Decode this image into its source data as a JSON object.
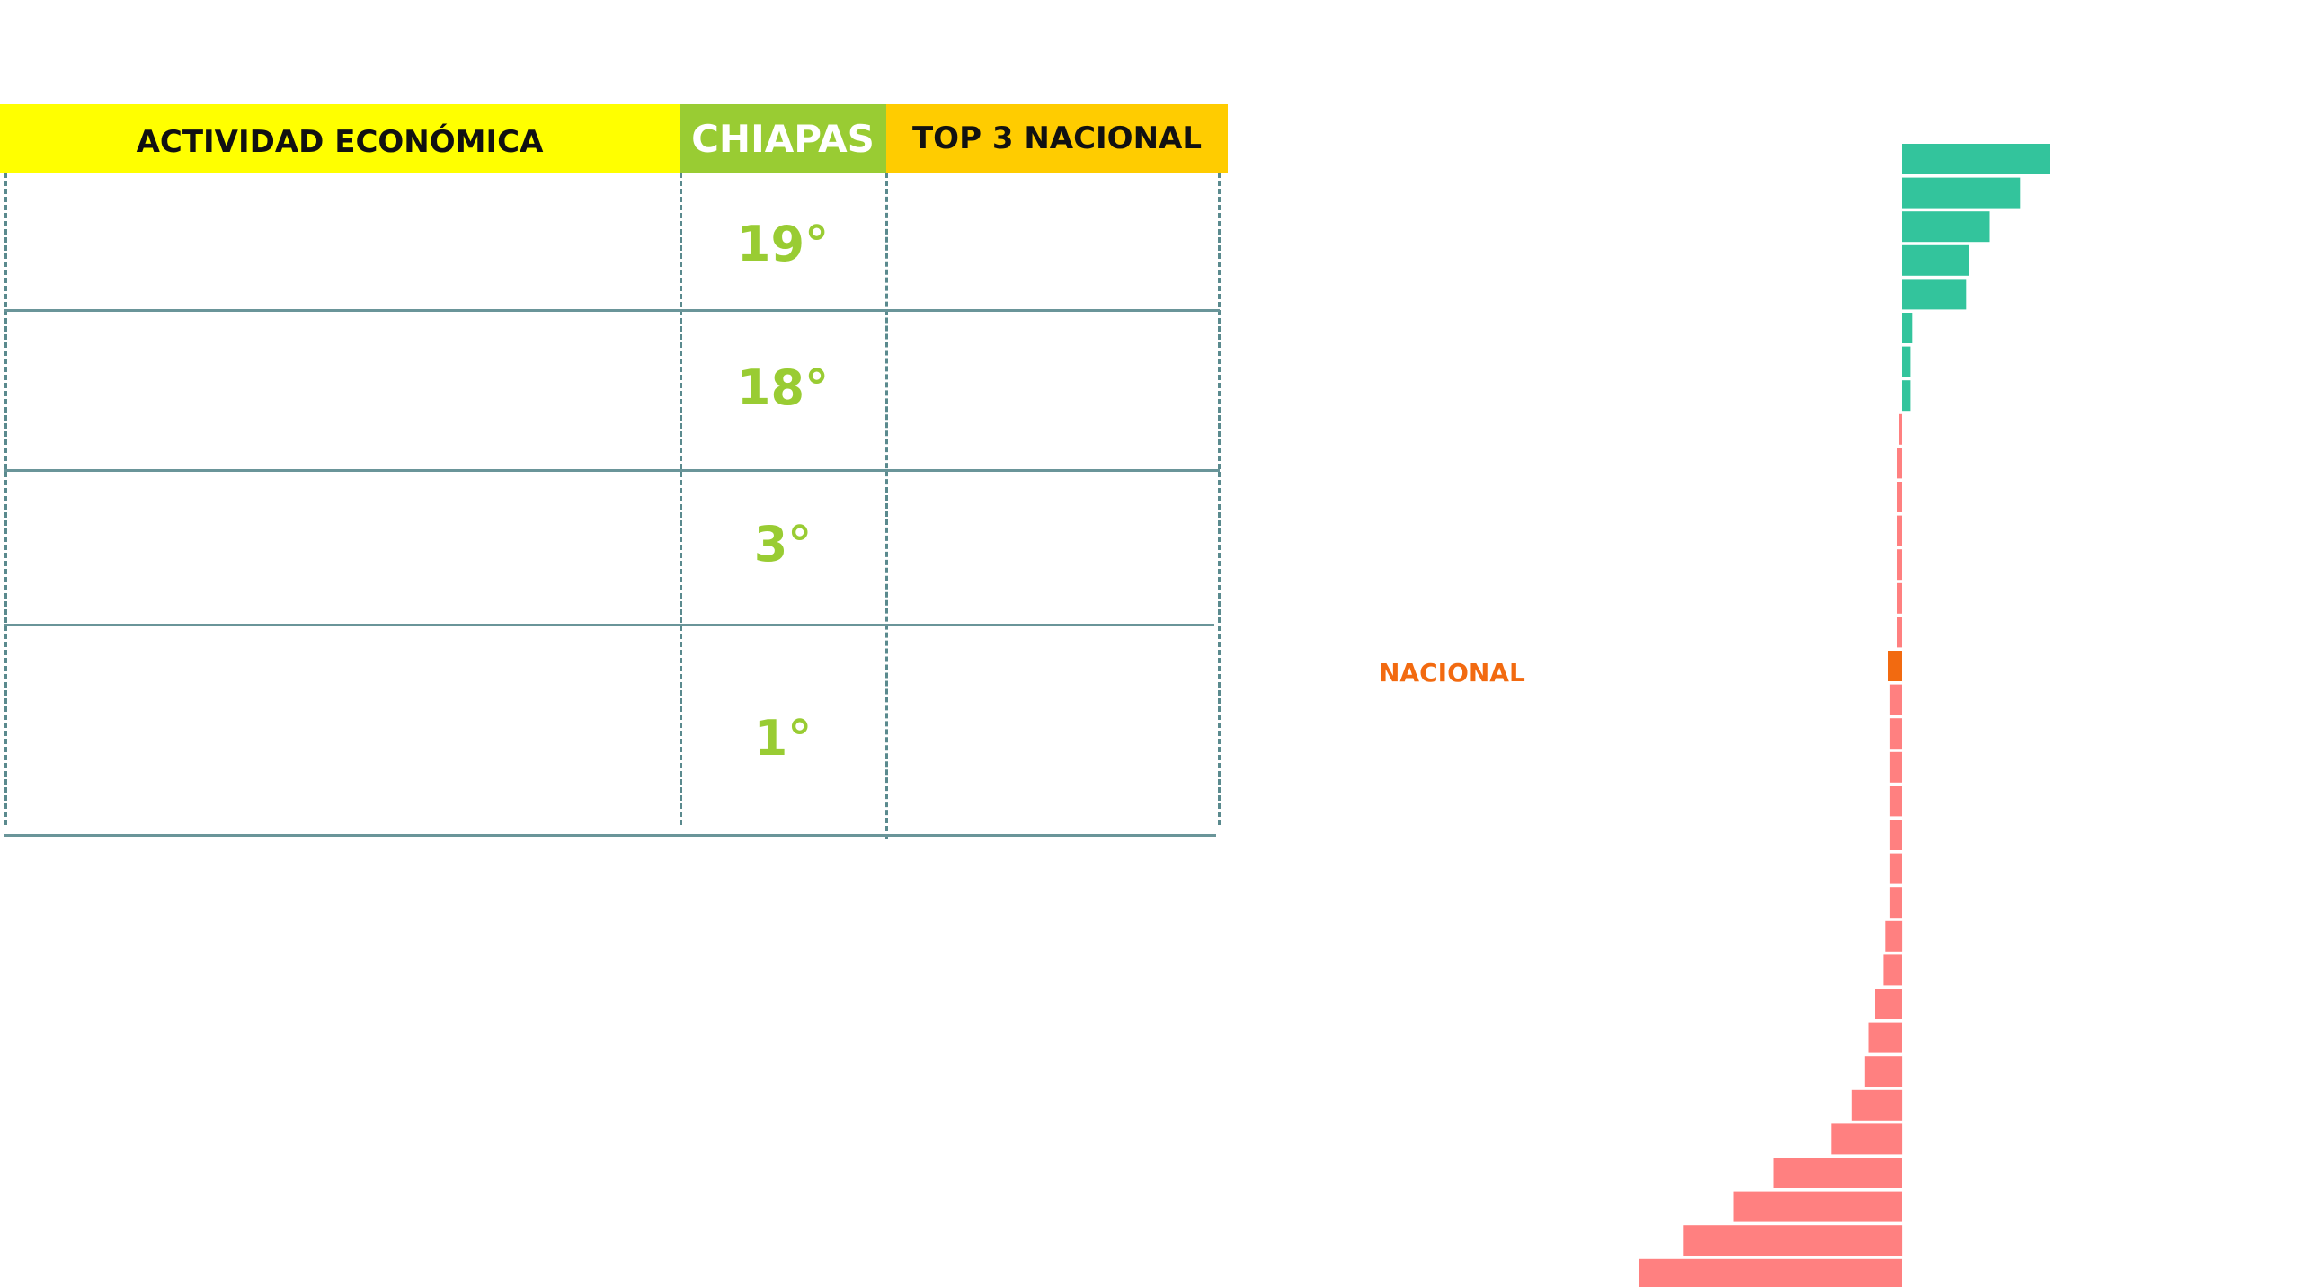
{
  "table": {
    "headers": {
      "activity": "ACTIVIDAD ECONÓMICA",
      "state": "CHIAPAS",
      "top3": "TOP 3 NACIONAL"
    },
    "rows": [
      {
        "rank": "19°"
      },
      {
        "rank": "18°"
      },
      {
        "rank": "3°"
      },
      {
        "rank": "1°"
      }
    ],
    "colors": {
      "activity": "#ffff00",
      "state": "#99cc33",
      "top3": "#ffcc00",
      "rank_text": "#99cc33",
      "grid": "#6a9599"
    }
  },
  "chart_data": {
    "type": "bar",
    "orientation": "horizontal",
    "title": "",
    "xlabel": "",
    "ylabel": "",
    "annotations": [
      {
        "text": "NACIONAL",
        "color": "#f26a10"
      }
    ],
    "colors": {
      "positive": "#33c49c",
      "negative": "#ff8080",
      "national": "#f26a10"
    },
    "national_index": 15,
    "values": [
      44,
      35,
      26,
      20,
      19,
      3,
      2.5,
      2.5,
      -0.8,
      -1.5,
      -1.5,
      -1.5,
      -1.5,
      -1.5,
      -1.5,
      -4,
      -3.5,
      -3.5,
      -3.5,
      -3.5,
      -3.5,
      -3.5,
      -3.5,
      -5,
      -5.5,
      -8,
      -10,
      -11,
      -15,
      -21,
      -38,
      -50,
      -65,
      -78
    ],
    "xlim": [
      -80,
      45
    ]
  }
}
